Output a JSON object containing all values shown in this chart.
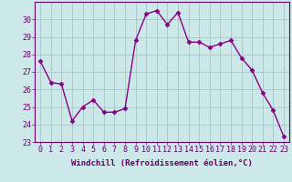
{
  "x": [
    0,
    1,
    2,
    3,
    4,
    5,
    6,
    7,
    8,
    9,
    10,
    11,
    12,
    13,
    14,
    15,
    16,
    17,
    18,
    19,
    20,
    21,
    22,
    23
  ],
  "y": [
    27.6,
    26.4,
    26.3,
    24.2,
    25.0,
    25.4,
    24.7,
    24.7,
    24.9,
    28.8,
    30.3,
    30.5,
    29.7,
    30.4,
    28.7,
    28.7,
    28.4,
    28.6,
    28.8,
    27.8,
    27.1,
    25.8,
    24.8,
    23.3
  ],
  "line_color": "#880088",
  "marker": "D",
  "marker_size": 2.5,
  "bg_color": "#cce8e8",
  "grid_color": "#aacccc",
  "xlabel": "Windchill (Refroidissement éolien,°C)",
  "ylabel": "",
  "ylim": [
    23,
    31
  ],
  "xlim": [
    -0.5,
    23.5
  ],
  "yticks": [
    23,
    24,
    25,
    26,
    27,
    28,
    29,
    30
  ],
  "xticks": [
    0,
    1,
    2,
    3,
    4,
    5,
    6,
    7,
    8,
    9,
    10,
    11,
    12,
    13,
    14,
    15,
    16,
    17,
    18,
    19,
    20,
    21,
    22,
    23
  ],
  "tick_label_color": "#660066",
  "axis_color": "#660066",
  "xlabel_fontsize": 6.5,
  "tick_fontsize": 6,
  "linewidth": 1.0
}
